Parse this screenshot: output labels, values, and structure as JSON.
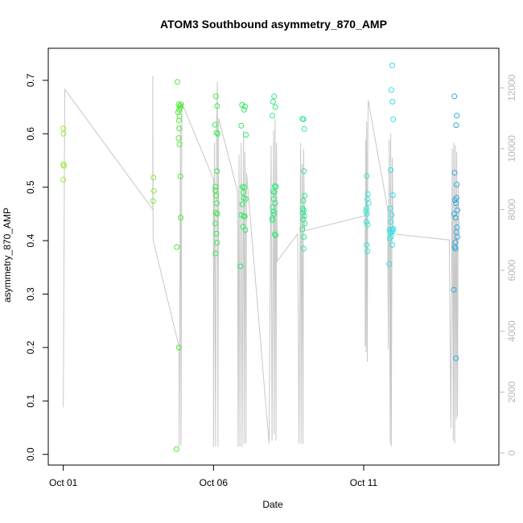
{
  "chart_data": {
    "type": "scatter",
    "title": "ATOM3 Southbound asymmetry_870_AMP",
    "xlabel": "Date",
    "ylabel": "asymmetry_870_AMP",
    "x_unit": "date",
    "xlim": [
      "2016-10-00 12:00",
      "2016-10-15 12:00"
    ],
    "ylim": [
      -0.02,
      0.76
    ],
    "y2lim": [
      -400,
      13300
    ],
    "x_ticks": [
      {
        "label": "Oct 01",
        "value": "2016-10-01"
      },
      {
        "label": "Oct 06",
        "value": "2016-10-06"
      },
      {
        "label": "Oct 11",
        "value": "2016-10-11"
      }
    ],
    "y_ticks": [
      0.0,
      0.1,
      0.2,
      0.3,
      0.4,
      0.5,
      0.6,
      0.7
    ],
    "y_tick_labels": [
      "0.0",
      "0.1",
      "0.2",
      "0.3",
      "0.4",
      "0.5",
      "0.6",
      "0.7"
    ],
    "y2_ticks": [
      0,
      2000,
      4000,
      6000,
      8000,
      10000,
      12000
    ],
    "y2_tick_labels": [
      "0",
      "2000",
      "4000",
      "6000",
      "8000",
      "10000",
      "12000"
    ],
    "grid": false,
    "legend": false,
    "series": [
      {
        "role": "points",
        "axis": "left",
        "points": [
          {
            "x": 1.0,
            "y": 0.61,
            "color": "#98e838"
          },
          {
            "x": 1.01,
            "y": 0.6,
            "color": "#98e838"
          },
          {
            "x": 1.0,
            "y": 0.543,
            "color": "#98e838"
          },
          {
            "x": 1.02,
            "y": 0.54,
            "color": "#98e838"
          },
          {
            "x": 1.0,
            "y": 0.514,
            "color": "#98e838"
          },
          {
            "x": 4.0,
            "y": 0.518,
            "color": "#80ea40"
          },
          {
            "x": 4.02,
            "y": 0.493,
            "color": "#80ea40"
          },
          {
            "x": 3.99,
            "y": 0.474,
            "color": "#80ea40"
          },
          {
            "x": 4.8,
            "y": 0.697,
            "color": "#50e838"
          },
          {
            "x": 4.84,
            "y": 0.655,
            "color": "#50e838"
          },
          {
            "x": 4.88,
            "y": 0.652,
            "color": "#50e838"
          },
          {
            "x": 4.9,
            "y": 0.649,
            "color": "#50e838"
          },
          {
            "x": 4.86,
            "y": 0.645,
            "color": "#50e838"
          },
          {
            "x": 4.92,
            "y": 0.655,
            "color": "#50e838"
          },
          {
            "x": 4.82,
            "y": 0.64,
            "color": "#50e838"
          },
          {
            "x": 4.87,
            "y": 0.633,
            "color": "#50e838"
          },
          {
            "x": 4.85,
            "y": 0.625,
            "color": "#50e838"
          },
          {
            "x": 4.86,
            "y": 0.61,
            "color": "#50e838"
          },
          {
            "x": 4.84,
            "y": 0.592,
            "color": "#50e838"
          },
          {
            "x": 4.87,
            "y": 0.58,
            "color": "#50e838"
          },
          {
            "x": 4.9,
            "y": 0.52,
            "color": "#50e838"
          },
          {
            "x": 4.91,
            "y": 0.443,
            "color": "#50e838"
          },
          {
            "x": 4.78,
            "y": 0.388,
            "color": "#50e838"
          },
          {
            "x": 4.85,
            "y": 0.2,
            "color": "#50e838"
          },
          {
            "x": 4.77,
            "y": 0.01,
            "color": "#50e838"
          },
          {
            "x": 6.08,
            "y": 0.67,
            "color": "#3ce84a"
          },
          {
            "x": 6.12,
            "y": 0.652,
            "color": "#3ce84a"
          },
          {
            "x": 6.05,
            "y": 0.617,
            "color": "#3ce84a"
          },
          {
            "x": 6.1,
            "y": 0.602,
            "color": "#3ce84a"
          },
          {
            "x": 6.14,
            "y": 0.6,
            "color": "#3ce84a"
          },
          {
            "x": 6.12,
            "y": 0.53,
            "color": "#3ce84a"
          },
          {
            "x": 6.07,
            "y": 0.501,
            "color": "#3ce84a"
          },
          {
            "x": 6.06,
            "y": 0.494,
            "color": "#3ce84a"
          },
          {
            "x": 6.09,
            "y": 0.484,
            "color": "#3ce84a"
          },
          {
            "x": 6.11,
            "y": 0.47,
            "color": "#3ce84a"
          },
          {
            "x": 6.08,
            "y": 0.452,
            "color": "#3ce84a"
          },
          {
            "x": 6.13,
            "y": 0.45,
            "color": "#3ce84a"
          },
          {
            "x": 6.06,
            "y": 0.432,
            "color": "#3ce84a"
          },
          {
            "x": 6.1,
            "y": 0.413,
            "color": "#3ce84a"
          },
          {
            "x": 6.12,
            "y": 0.396,
            "color": "#3ce84a"
          },
          {
            "x": 6.07,
            "y": 0.376,
            "color": "#3ce84a"
          },
          {
            "x": 6.95,
            "y": 0.654,
            "color": "#30e860"
          },
          {
            "x": 7.05,
            "y": 0.651,
            "color": "#30e860"
          },
          {
            "x": 7.02,
            "y": 0.645,
            "color": "#30e860"
          },
          {
            "x": 6.92,
            "y": 0.615,
            "color": "#30e860"
          },
          {
            "x": 7.08,
            "y": 0.598,
            "color": "#30e860"
          },
          {
            "x": 6.97,
            "y": 0.501,
            "color": "#30e860"
          },
          {
            "x": 7.03,
            "y": 0.5,
            "color": "#30e860"
          },
          {
            "x": 6.99,
            "y": 0.49,
            "color": "#30e860"
          },
          {
            "x": 7.01,
            "y": 0.48,
            "color": "#30e860"
          },
          {
            "x": 7.07,
            "y": 0.478,
            "color": "#30e860"
          },
          {
            "x": 6.96,
            "y": 0.468,
            "color": "#30e860"
          },
          {
            "x": 6.93,
            "y": 0.448,
            "color": "#30e860"
          },
          {
            "x": 7.0,
            "y": 0.446,
            "color": "#30e860"
          },
          {
            "x": 7.04,
            "y": 0.445,
            "color": "#30e860"
          },
          {
            "x": 6.98,
            "y": 0.426,
            "color": "#30e860"
          },
          {
            "x": 7.06,
            "y": 0.42,
            "color": "#30e860"
          },
          {
            "x": 6.9,
            "y": 0.352,
            "color": "#30e860"
          },
          {
            "x": 8.02,
            "y": 0.67,
            "color": "#30e878"
          },
          {
            "x": 7.98,
            "y": 0.66,
            "color": "#30e878"
          },
          {
            "x": 8.06,
            "y": 0.65,
            "color": "#30e878"
          },
          {
            "x": 7.96,
            "y": 0.634,
            "color": "#30e878"
          },
          {
            "x": 8.04,
            "y": 0.502,
            "color": "#30e878"
          },
          {
            "x": 8.08,
            "y": 0.501,
            "color": "#30e878"
          },
          {
            "x": 7.99,
            "y": 0.492,
            "color": "#30e878"
          },
          {
            "x": 8.03,
            "y": 0.49,
            "color": "#30e878"
          },
          {
            "x": 8.01,
            "y": 0.478,
            "color": "#30e878"
          },
          {
            "x": 8.05,
            "y": 0.47,
            "color": "#30e878"
          },
          {
            "x": 7.97,
            "y": 0.462,
            "color": "#30e878"
          },
          {
            "x": 8.0,
            "y": 0.455,
            "color": "#30e878"
          },
          {
            "x": 8.02,
            "y": 0.45,
            "color": "#30e878"
          },
          {
            "x": 7.95,
            "y": 0.441,
            "color": "#30e878"
          },
          {
            "x": 7.97,
            "y": 0.438,
            "color": "#30e878"
          },
          {
            "x": 8.04,
            "y": 0.412,
            "color": "#30e878"
          },
          {
            "x": 8.07,
            "y": 0.41,
            "color": "#30e878"
          },
          {
            "x": 8.96,
            "y": 0.628,
            "color": "#30e890"
          },
          {
            "x": 9.0,
            "y": 0.627,
            "color": "#30e890"
          },
          {
            "x": 9.02,
            "y": 0.609,
            "color": "#30e890"
          },
          {
            "x": 9.01,
            "y": 0.53,
            "color": "#30e890"
          },
          {
            "x": 9.03,
            "y": 0.484,
            "color": "#30e890"
          },
          {
            "x": 8.99,
            "y": 0.475,
            "color": "#30e890"
          },
          {
            "x": 8.97,
            "y": 0.46,
            "color": "#30e890"
          },
          {
            "x": 9.0,
            "y": 0.457,
            "color": "#30e890"
          },
          {
            "x": 8.98,
            "y": 0.452,
            "color": "#30e890"
          },
          {
            "x": 9.02,
            "y": 0.446,
            "color": "#30e890"
          },
          {
            "x": 8.99,
            "y": 0.44,
            "color": "#30e890"
          },
          {
            "x": 9.04,
            "y": 0.432,
            "color": "#30e890"
          },
          {
            "x": 8.96,
            "y": 0.421,
            "color": "#30e890"
          },
          {
            "x": 9.01,
            "y": 0.407,
            "color": "#30e890"
          },
          {
            "x": 9.0,
            "y": 0.385,
            "color": "#30e890"
          },
          {
            "x": 11.1,
            "y": 0.521,
            "color": "#30e8d8"
          },
          {
            "x": 11.14,
            "y": 0.487,
            "color": "#30e8d8"
          },
          {
            "x": 11.12,
            "y": 0.478,
            "color": "#30e8d8"
          },
          {
            "x": 11.16,
            "y": 0.47,
            "color": "#30e8d8"
          },
          {
            "x": 11.09,
            "y": 0.46,
            "color": "#30e8d8"
          },
          {
            "x": 11.08,
            "y": 0.455,
            "color": "#30e8d8"
          },
          {
            "x": 11.11,
            "y": 0.45,
            "color": "#30e8d8"
          },
          {
            "x": 11.09,
            "y": 0.435,
            "color": "#30e8d8"
          },
          {
            "x": 11.13,
            "y": 0.43,
            "color": "#30e8d8"
          },
          {
            "x": 11.1,
            "y": 0.392,
            "color": "#30e8d8"
          },
          {
            "x": 11.12,
            "y": 0.38,
            "color": "#30e8d8"
          },
          {
            "x": 11.95,
            "y": 0.728,
            "color": "#30e0e8"
          },
          {
            "x": 11.92,
            "y": 0.682,
            "color": "#30e0e8"
          },
          {
            "x": 11.96,
            "y": 0.66,
            "color": "#30e0e8"
          },
          {
            "x": 11.98,
            "y": 0.627,
            "color": "#30e0e8"
          },
          {
            "x": 11.9,
            "y": 0.532,
            "color": "#30e0e8"
          },
          {
            "x": 11.97,
            "y": 0.485,
            "color": "#30e0e8"
          },
          {
            "x": 11.88,
            "y": 0.46,
            "color": "#30e0e8"
          },
          {
            "x": 11.93,
            "y": 0.448,
            "color": "#30e0e8"
          },
          {
            "x": 11.91,
            "y": 0.435,
            "color": "#30e0e8"
          },
          {
            "x": 11.99,
            "y": 0.422,
            "color": "#30e0e8"
          },
          {
            "x": 11.94,
            "y": 0.421,
            "color": "#30e0e8"
          },
          {
            "x": 11.86,
            "y": 0.42,
            "color": "#30e0e8"
          },
          {
            "x": 11.96,
            "y": 0.418,
            "color": "#30e0e8"
          },
          {
            "x": 11.89,
            "y": 0.415,
            "color": "#30e0e8"
          },
          {
            "x": 11.92,
            "y": 0.408,
            "color": "#30e0e8"
          },
          {
            "x": 11.87,
            "y": 0.404,
            "color": "#30e0e8"
          },
          {
            "x": 11.95,
            "y": 0.392,
            "color": "#30e0e8"
          },
          {
            "x": 11.85,
            "y": 0.356,
            "color": "#30e0e8"
          },
          {
            "x": 14.02,
            "y": 0.67,
            "color": "#2fa8dc"
          },
          {
            "x": 14.1,
            "y": 0.634,
            "color": "#2fa8dc"
          },
          {
            "x": 14.08,
            "y": 0.616,
            "color": "#2fa8dc"
          },
          {
            "x": 14.03,
            "y": 0.527,
            "color": "#2fa8dc"
          },
          {
            "x": 14.1,
            "y": 0.505,
            "color": "#2fa8dc"
          },
          {
            "x": 14.09,
            "y": 0.48,
            "color": "#2fa8dc"
          },
          {
            "x": 14.04,
            "y": 0.476,
            "color": "#2fa8dc"
          },
          {
            "x": 14.07,
            "y": 0.47,
            "color": "#2fa8dc"
          },
          {
            "x": 14.12,
            "y": 0.457,
            "color": "#2fa8dc"
          },
          {
            "x": 14.01,
            "y": 0.45,
            "color": "#2fa8dc"
          },
          {
            "x": 14.06,
            "y": 0.443,
            "color": "#2fa8dc"
          },
          {
            "x": 14.11,
            "y": 0.425,
            "color": "#2fa8dc"
          },
          {
            "x": 14.09,
            "y": 0.416,
            "color": "#2fa8dc"
          },
          {
            "x": 14.12,
            "y": 0.407,
            "color": "#2fa8dc"
          },
          {
            "x": 14.05,
            "y": 0.397,
            "color": "#2fa8dc"
          },
          {
            "x": 14.03,
            "y": 0.388,
            "color": "#2fa8dc"
          },
          {
            "x": 14.06,
            "y": 0.385,
            "color": "#2fa8dc"
          },
          {
            "x": 14.0,
            "y": 0.308,
            "color": "#2fa8dc"
          },
          {
            "x": 14.07,
            "y": 0.18,
            "color": "#2fa8dc"
          }
        ]
      },
      {
        "role": "line",
        "axis": "right",
        "color": "#c8c8c8",
        "points": [
          [
            1.0,
            1500
          ],
          [
            1.05,
            11950
          ],
          [
            3.98,
            8000
          ],
          [
            3.98,
            12400
          ],
          [
            3.99,
            7000
          ],
          [
            4.85,
            3500
          ],
          [
            4.86,
            200
          ],
          [
            4.9,
            10800
          ],
          [
            4.92,
            250
          ],
          [
            4.95,
            11500
          ],
          [
            6.0,
            9000
          ],
          [
            6.0,
            200
          ],
          [
            6.03,
            10200
          ],
          [
            6.07,
            200
          ],
          [
            6.1,
            10600
          ],
          [
            6.13,
            12200
          ],
          [
            6.15,
            200
          ],
          [
            6.17,
            11000
          ],
          [
            6.8,
            8600
          ],
          [
            6.82,
            200
          ],
          [
            6.85,
            9800
          ],
          [
            6.88,
            200
          ],
          [
            6.92,
            10200
          ],
          [
            6.95,
            200
          ],
          [
            7.0,
            10600
          ],
          [
            7.02,
            300
          ],
          [
            7.05,
            9900
          ],
          [
            7.08,
            300
          ],
          [
            7.1,
            9200
          ],
          [
            7.85,
            300
          ],
          [
            7.92,
            10100
          ],
          [
            7.95,
            400
          ],
          [
            8.0,
            10600
          ],
          [
            8.02,
            600
          ],
          [
            8.05,
            11000
          ],
          [
            8.08,
            400
          ],
          [
            8.1,
            10200
          ],
          [
            8.12,
            6300
          ],
          [
            8.8,
            7200
          ],
          [
            8.85,
            300
          ],
          [
            8.9,
            10200
          ],
          [
            8.92,
            300
          ],
          [
            8.95,
            9500
          ],
          [
            8.98,
            300
          ],
          [
            9.0,
            10000
          ],
          [
            9.03,
            7300
          ],
          [
            11.05,
            7800
          ],
          [
            11.05,
            3500
          ],
          [
            11.07,
            10300
          ],
          [
            11.08,
            3300
          ],
          [
            11.1,
            10900
          ],
          [
            11.12,
            3000
          ],
          [
            11.14,
            10600
          ],
          [
            11.15,
            11600
          ],
          [
            11.8,
            8000
          ],
          [
            11.82,
            3400
          ],
          [
            11.85,
            10300
          ],
          [
            11.88,
            300
          ],
          [
            11.9,
            10500
          ],
          [
            11.92,
            200
          ],
          [
            11.95,
            9700
          ],
          [
            11.98,
            7200
          ],
          [
            13.85,
            7000
          ],
          [
            13.9,
            800
          ],
          [
            13.95,
            10000
          ],
          [
            13.98,
            400
          ],
          [
            14.0,
            10200
          ],
          [
            14.03,
            300
          ],
          [
            14.05,
            10100
          ],
          [
            14.08,
            1100
          ],
          [
            14.1,
            9900
          ],
          [
            14.12,
            1200
          ],
          [
            14.15,
            8800
          ],
          [
            14.17,
            7500
          ]
        ]
      }
    ]
  }
}
